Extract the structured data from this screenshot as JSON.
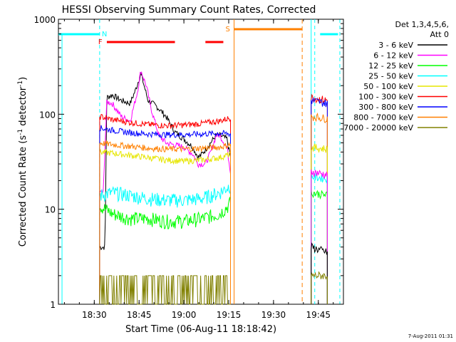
{
  "chart_data": {
    "type": "line",
    "title": "HESSI Observing Summary Count Rates, Corrected",
    "xlabel": "Start Time (06-Aug-11 18:18:42)",
    "ylabel": "Corrected Count Rate (s⁻¹ detector⁻¹)",
    "ylabel_parts": {
      "a": "Corrected Count Rate (s",
      "b": "-1",
      "c": " detector",
      "d": "-1",
      "e": ")"
    },
    "yscale": "log",
    "xlim_minutes": [
      18.3,
      19.89
    ],
    "ylim": [
      1,
      1000
    ],
    "x_ticks": [
      "18:30",
      "18:45",
      "19:00",
      "19:15",
      "19:30",
      "19:45"
    ],
    "x_tick_minutes": [
      30,
      45,
      60,
      75,
      90,
      105
    ],
    "y_ticks": [
      "1",
      "10",
      "100",
      "1000"
    ],
    "y_tick_values": [
      1,
      10,
      100,
      1000
    ],
    "legend_header": [
      "Det 1,3,4,5,6,",
      "Att 0"
    ],
    "legend_position": "right",
    "date_stamp": "7-Aug-2011 01:31",
    "series": [
      {
        "name": "3 - 6 keV",
        "color": "#000000",
        "values": [
          [
            18.53,
            4
          ],
          [
            18.56,
            4
          ],
          [
            18.57,
            150
          ],
          [
            18.6,
            160
          ],
          [
            18.65,
            140
          ],
          [
            18.7,
            130
          ],
          [
            18.73,
            180
          ],
          [
            18.76,
            270
          ],
          [
            18.8,
            140
          ],
          [
            18.85,
            120
          ],
          [
            18.9,
            95
          ],
          [
            18.95,
            65
          ],
          [
            19.0,
            55
          ],
          [
            19.05,
            45
          ],
          [
            19.08,
            35
          ],
          [
            19.1,
            38
          ],
          [
            19.13,
            45
          ],
          [
            19.18,
            60
          ],
          [
            19.2,
            60
          ],
          [
            19.24,
            55
          ],
          [
            19.26,
            35
          ]
        ]
      },
      {
        "name": "6 - 12 keV",
        "color": "#ff00ff",
        "values": [
          [
            18.53,
            15
          ],
          [
            18.55,
            15
          ],
          [
            18.57,
            135
          ],
          [
            18.6,
            130
          ],
          [
            18.65,
            95
          ],
          [
            18.7,
            85
          ],
          [
            18.74,
            170
          ],
          [
            18.76,
            290
          ],
          [
            18.79,
            200
          ],
          [
            18.82,
            110
          ],
          [
            18.86,
            60
          ],
          [
            18.9,
            50
          ],
          [
            19.0,
            45
          ],
          [
            19.05,
            38
          ],
          [
            19.08,
            30
          ],
          [
            19.12,
            30
          ],
          [
            19.15,
            40
          ],
          [
            19.18,
            60
          ],
          [
            19.2,
            60
          ],
          [
            19.24,
            45
          ],
          [
            19.26,
            25
          ]
        ]
      },
      {
        "name": "12 - 25 keV",
        "color": "#00ff00",
        "values": [
          [
            18.53,
            11
          ],
          [
            18.6,
            9
          ],
          [
            18.7,
            8
          ],
          [
            18.8,
            8
          ],
          [
            18.9,
            7.5
          ],
          [
            19.0,
            7.5
          ],
          [
            19.1,
            8
          ],
          [
            19.2,
            9
          ],
          [
            19.25,
            11
          ],
          [
            19.26,
            12
          ]
        ]
      },
      {
        "name": "25 - 50 keV",
        "color": "#00ffff",
        "values": [
          [
            18.53,
            14
          ],
          [
            18.6,
            15
          ],
          [
            18.7,
            14
          ],
          [
            18.8,
            13
          ],
          [
            18.9,
            12.5
          ],
          [
            19.0,
            12.5
          ],
          [
            19.1,
            13
          ],
          [
            19.2,
            15
          ],
          [
            19.26,
            18
          ]
        ]
      },
      {
        "name": "50 - 100 keV",
        "color": "#e6e600",
        "values": [
          [
            18.53,
            40
          ],
          [
            18.6,
            39
          ],
          [
            18.7,
            37
          ],
          [
            18.8,
            35
          ],
          [
            18.9,
            33
          ],
          [
            19.0,
            32
          ],
          [
            19.1,
            33
          ],
          [
            19.2,
            35
          ],
          [
            19.26,
            38
          ]
        ]
      },
      {
        "name": "100 - 300 keV",
        "color": "#ff0000",
        "values": [
          [
            18.53,
            95
          ],
          [
            18.6,
            88
          ],
          [
            18.7,
            82
          ],
          [
            18.8,
            78
          ],
          [
            18.9,
            76
          ],
          [
            19.0,
            77
          ],
          [
            19.1,
            80
          ],
          [
            19.2,
            85
          ],
          [
            19.26,
            92
          ]
        ]
      },
      {
        "name": "300 - 800 keV",
        "color": "#0000ff",
        "values": [
          [
            18.53,
            72
          ],
          [
            18.6,
            68
          ],
          [
            18.7,
            64
          ],
          [
            18.8,
            62
          ],
          [
            18.9,
            61
          ],
          [
            19.0,
            61
          ],
          [
            19.1,
            62
          ],
          [
            19.2,
            63
          ],
          [
            19.26,
            62
          ]
        ]
      },
      {
        "name": "800 - 7000 keV",
        "color": "#ff8000",
        "values": [
          [
            18.53,
            50
          ],
          [
            18.6,
            48
          ],
          [
            18.7,
            46
          ],
          [
            18.8,
            44
          ],
          [
            18.9,
            43
          ],
          [
            19.0,
            43
          ],
          [
            19.1,
            44
          ],
          [
            19.2,
            45
          ],
          [
            19.26,
            48
          ]
        ]
      },
      {
        "name": "7000 - 20000 keV",
        "color": "#808000",
        "values": [
          [
            18.53,
            2
          ],
          [
            19.26,
            2
          ]
        ]
      }
    ],
    "second_interval": [
      {
        "color": "#ff0000",
        "values": [
          [
            19.71,
            150
          ],
          [
            19.8,
            140
          ]
        ]
      },
      {
        "color": "#0000ff",
        "values": [
          [
            19.71,
            140
          ],
          [
            19.8,
            130
          ]
        ]
      },
      {
        "color": "#ff8000",
        "values": [
          [
            19.71,
            95
          ],
          [
            19.8,
            90
          ]
        ]
      },
      {
        "color": "#e6e600",
        "values": [
          [
            19.71,
            45
          ],
          [
            19.8,
            43
          ]
        ]
      },
      {
        "color": "#00ffff",
        "values": [
          [
            19.71,
            22
          ],
          [
            19.8,
            21
          ]
        ]
      },
      {
        "color": "#00ff00",
        "values": [
          [
            19.71,
            15
          ],
          [
            19.8,
            14
          ]
        ]
      },
      {
        "color": "#ff00ff",
        "values": [
          [
            19.71,
            25
          ],
          [
            19.8,
            23
          ]
        ]
      },
      {
        "color": "#000000",
        "values": [
          [
            19.71,
            4
          ],
          [
            19.8,
            3.5
          ]
        ]
      },
      {
        "color": "#808000",
        "values": [
          [
            19.71,
            2
          ],
          [
            19.8,
            2
          ]
        ]
      }
    ],
    "flags": {
      "F_label": "F",
      "F_color": "#ff0000",
      "F_segments": [
        [
          18.57,
          18.95
        ],
        [
          19.12,
          19.22
        ]
      ],
      "N_label": "N",
      "N_color": "#00ffff",
      "N_segments": [
        [
          18.3,
          18.53
        ],
        [
          19.76,
          19.86
        ]
      ],
      "S_label": "S",
      "S_color": "#ff8000",
      "S_segments": [
        [
          19.28,
          19.66
        ]
      ]
    },
    "night_lines_minutes": [
      18.53,
      19.73,
      19.87
    ],
    "saa_lines_minutes": [
      19.28,
      19.66
    ]
  }
}
